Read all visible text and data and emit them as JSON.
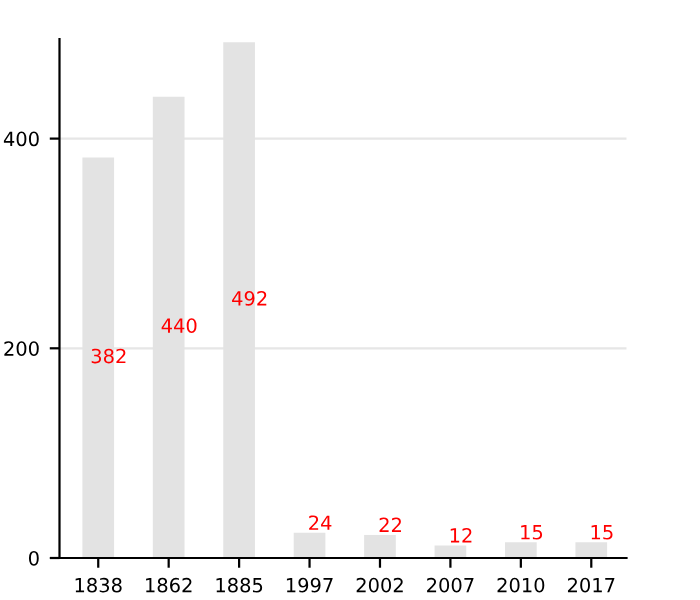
{
  "chart_data": {
    "type": "bar",
    "categories": [
      "1838",
      "1862",
      "1885",
      "1997",
      "2002",
      "2007",
      "2010",
      "2017"
    ],
    "values": [
      382,
      440,
      492,
      24,
      22,
      12,
      15,
      15
    ],
    "color": "#e3e3e3",
    "ylim": [
      0,
      495
    ],
    "yticks": [
      0,
      200,
      400
    ],
    "grid": "y",
    "data_labels": true
  }
}
